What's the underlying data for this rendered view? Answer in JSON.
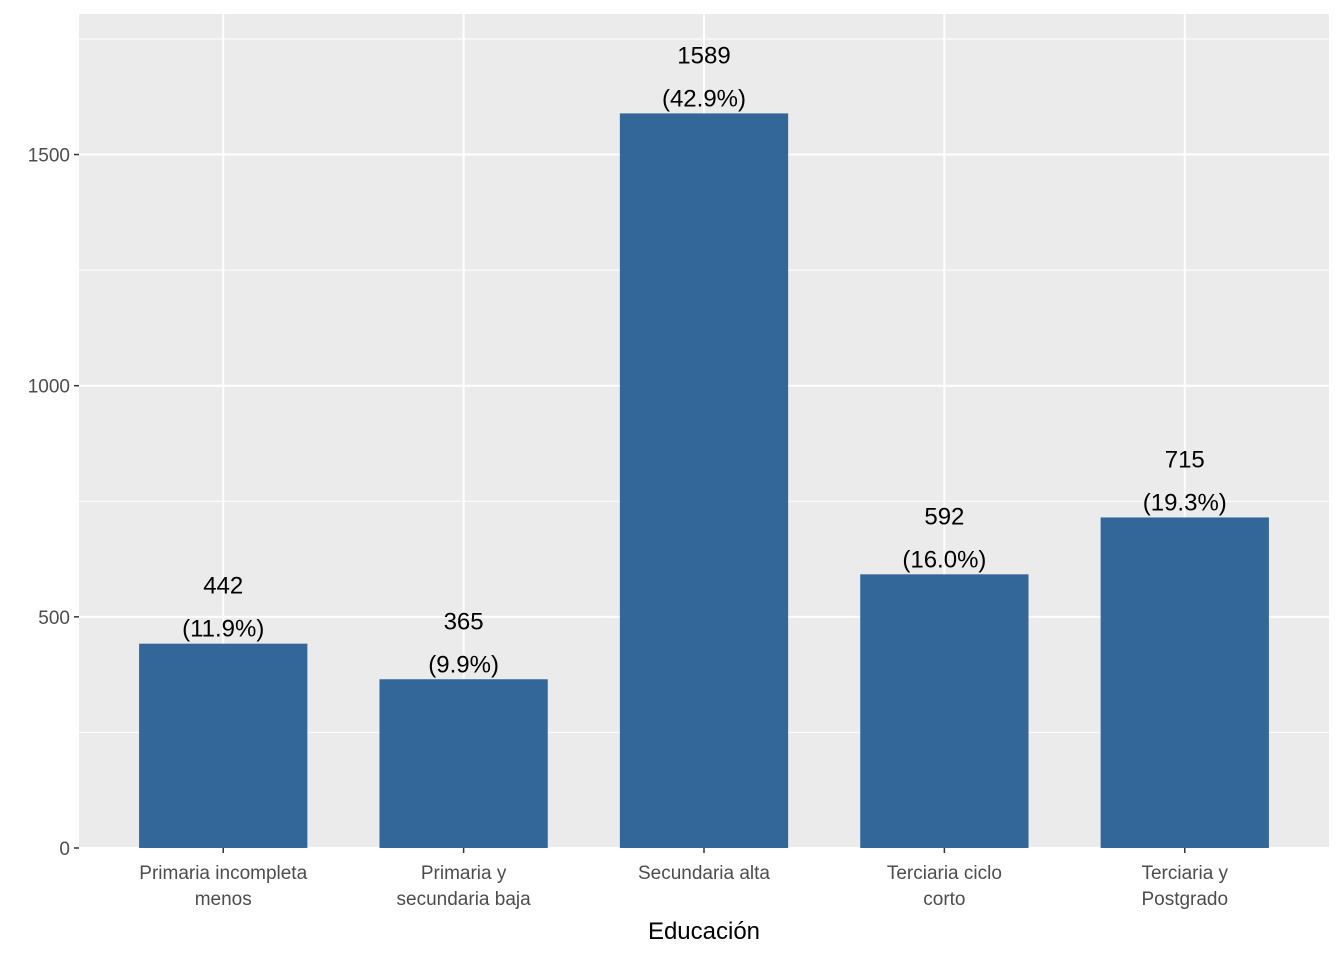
{
  "chart_data": {
    "type": "bar",
    "title": "",
    "xlabel": "Educación",
    "ylabel": "",
    "ylim": [
      0,
      1804
    ],
    "grid": true,
    "legend": "none",
    "bar_color": "#336699",
    "panel_background": "#EBEBEB",
    "yticks": [
      0,
      500,
      1000,
      1500
    ],
    "ytick_labels": [
      "0",
      "500",
      "1000",
      "1500"
    ],
    "categories": [
      [
        "Primaria incompleta",
        "menos"
      ],
      [
        "Primaria y",
        "secundaria baja"
      ],
      [
        "Secundaria alta"
      ],
      [
        "Terciaria ciclo",
        "corto"
      ],
      [
        "Terciaria y",
        "Postgrado"
      ]
    ],
    "values": [
      442,
      365,
      1589,
      592,
      715
    ],
    "value_labels": [
      "442",
      "365",
      "1589",
      "592",
      "715"
    ],
    "percent_labels": [
      "(11.9%)",
      "(9.9%)",
      "(42.9%)",
      "(16.0%)",
      "(19.3%)"
    ]
  }
}
